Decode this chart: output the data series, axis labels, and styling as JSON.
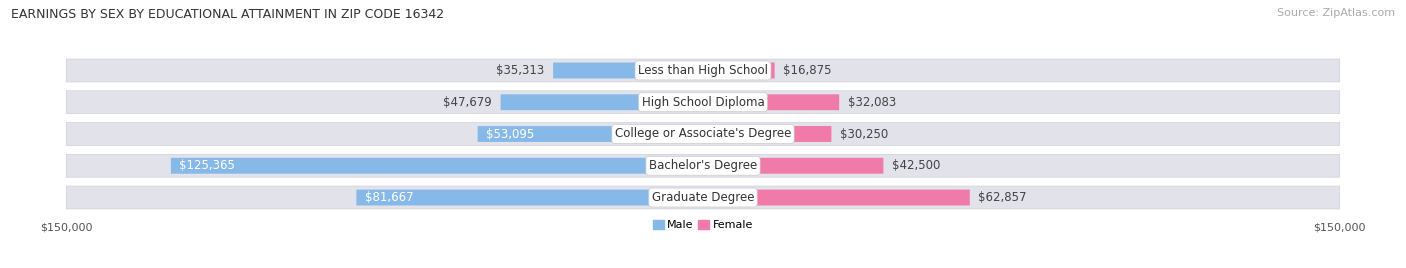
{
  "title": "EARNINGS BY SEX BY EDUCATIONAL ATTAINMENT IN ZIP CODE 16342",
  "source": "Source: ZipAtlas.com",
  "categories": [
    "Less than High School",
    "High School Diploma",
    "College or Associate's Degree",
    "Bachelor's Degree",
    "Graduate Degree"
  ],
  "male_values": [
    35313,
    47679,
    53095,
    125365,
    81667
  ],
  "female_values": [
    16875,
    32083,
    30250,
    42500,
    62857
  ],
  "male_color": "#87b9e8",
  "female_color": "#f07aa8",
  "row_bg_color": "#e2e2ea",
  "row_border_color": "#d0d0dc",
  "axis_max": 150000,
  "legend_male": "Male",
  "legend_female": "Female",
  "background_color": "#ffffff",
  "label_color_dark": "#444444",
  "label_color_white": "#ffffff",
  "value_fontsize": 8.5,
  "cat_fontsize": 8.5,
  "title_fontsize": 9.0,
  "source_fontsize": 8.0,
  "tick_fontsize": 8.0
}
